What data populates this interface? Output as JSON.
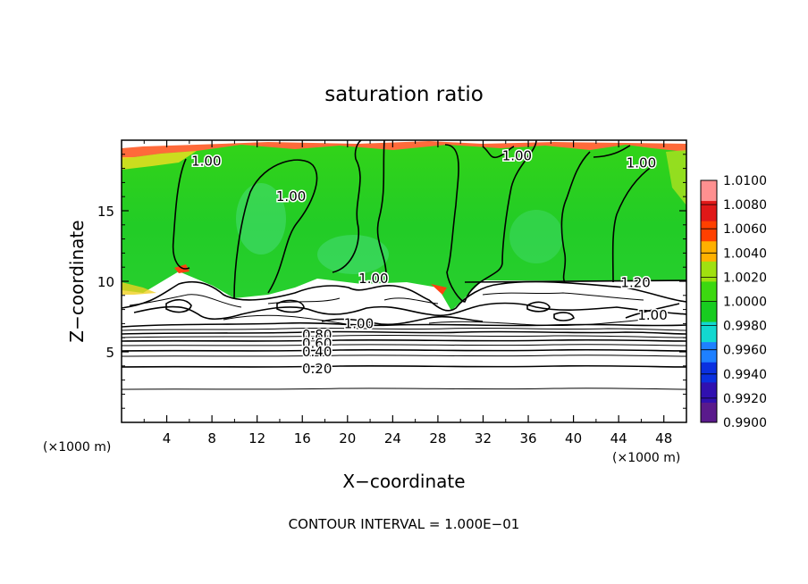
{
  "chart_data": {
    "type": "heatmap",
    "title": "saturation ratio",
    "xlabel": "X−coordinate",
    "ylabel": "Z−coordinate",
    "x_units": "(×1000 m)",
    "y_units": "(×1000 m)",
    "xlim": [
      0,
      50
    ],
    "ylim": [
      0,
      20
    ],
    "x_ticks": [
      4,
      8,
      12,
      16,
      20,
      24,
      28,
      32,
      36,
      40,
      44,
      48
    ],
    "y_ticks": [
      5,
      10,
      15
    ],
    "colorbar": {
      "min": 0.99,
      "max": 1.01,
      "labels": [
        "1.0100",
        "1.0080",
        "1.0060",
        "1.0040",
        "1.0020",
        "1.0000",
        "0.9980",
        "0.9960",
        "0.9940",
        "0.9920",
        "0.9900"
      ],
      "colors": [
        "#5a1a8c",
        "#3010b0",
        "#0a30e0",
        "#1e80ff",
        "#12d8d0",
        "#18cc20",
        "#3cd810",
        "#a0e010",
        "#ffb000",
        "#ff4000",
        "#e01818",
        "#ff9090"
      ]
    },
    "footnote": "CONTOUR INTERVAL = 1.000E−01",
    "contour_interval": 0.1,
    "contour_labels": [
      {
        "text": "1.00",
        "x": 7.5,
        "z": 18.5
      },
      {
        "text": "1.00",
        "x": 15.0,
        "z": 16.0
      },
      {
        "text": "1.00",
        "x": 35.0,
        "z": 18.9
      },
      {
        "text": "1.00",
        "x": 46.0,
        "z": 18.4
      },
      {
        "text": "1.00",
        "x": 22.3,
        "z": 10.2
      },
      {
        "text": "1.20",
        "x": 45.5,
        "z": 9.9
      },
      {
        "text": "1.00",
        "x": 21.0,
        "z": 7.0
      },
      {
        "text": "1.00",
        "x": 47.0,
        "z": 7.6
      },
      {
        "text": "0.80",
        "x": 17.3,
        "z": 6.2
      },
      {
        "text": "0.60",
        "x": 17.3,
        "z": 5.6
      },
      {
        "text": "0.40",
        "x": 17.3,
        "z": 5.0
      },
      {
        "text": "0.20",
        "x": 17.3,
        "z": 3.8
      }
    ]
  }
}
